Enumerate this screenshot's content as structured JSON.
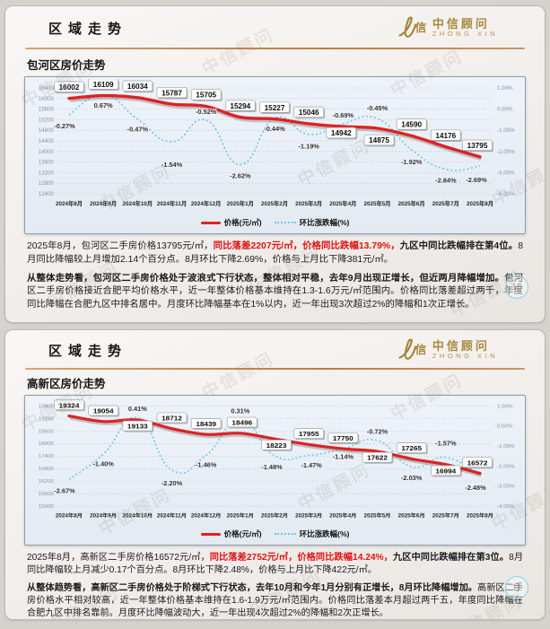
{
  "watermark_text": "中信顾问",
  "panels": [
    {
      "header": {
        "title": "区域走势",
        "logo_cn": "中信顾问",
        "logo_en": "ZHONG XIN"
      },
      "chart_title": "包河区房价走势",
      "page_number": "10",
      "chart_data": {
        "type": "line",
        "title": "包河区房价走势",
        "categories": [
          "2024年8月",
          "2024年9月",
          "2024年10月",
          "2024年11月",
          "2024年12月",
          "2025年1月",
          "2025年2月",
          "2025年3月",
          "2025年4月",
          "2025年5月",
          "2025年6月",
          "2025年7月",
          "2025年8月"
        ],
        "series": [
          {
            "name": "价格(元/㎡)",
            "axis": "left",
            "style": "solid",
            "color": "#e02121",
            "values": [
              16002,
              16109,
              16034,
              15787,
              15705,
              15294,
              15227,
              15046,
              14942,
              14875,
              14590,
              14176,
              13795
            ]
          },
          {
            "name": "环比涨跌幅(%)",
            "axis": "right",
            "style": "dotted",
            "color": "#74c7e9",
            "values": [
              -0.27,
              0.67,
              -0.47,
              -1.54,
              -0.52,
              -2.62,
              -0.44,
              -1.19,
              -0.69,
              -0.45,
              -1.92,
              -2.84,
              -2.69
            ],
            "labels": [
              "-0.27%",
              "0.67%",
              "-0.47%",
              "-1.54%",
              "-0.52%",
              "-2.62%",
              "-0.44%",
              "-1.19%",
              "-0.69%",
              "-0.45%",
              "-1.92%",
              "-2.84%",
              "-2.69%"
            ]
          }
        ],
        "left_ticks": [
          16400,
          16000,
          15600,
          15200,
          14800,
          14400,
          14000,
          13600,
          13200,
          12800,
          12400
        ],
        "right_ticks": [
          "1.00%",
          "0.00%",
          "-1.00%",
          "-2.00%",
          "-3.00%",
          "-4.00%"
        ],
        "left_axis_range": [
          12400,
          16400
        ],
        "right_axis_range": [
          -4,
          1
        ],
        "grid": true,
        "legend_position": "bottom",
        "price_label_dy": [
          -13,
          -13,
          -13,
          -13,
          -13,
          -13,
          -13,
          -13,
          7,
          13,
          -13,
          -13,
          -13
        ],
        "price_label_dx": [
          0,
          0,
          0,
          0,
          0,
          0,
          0,
          0,
          -2,
          2,
          0,
          0,
          -3
        ],
        "pct_label_dy": [
          11,
          10,
          10,
          24,
          -7,
          11,
          10,
          12,
          -7,
          -9,
          12,
          11,
          14
        ],
        "pct_label_dx": [
          -5,
          0,
          0,
          0,
          0,
          0,
          0,
          0,
          0,
          0,
          0,
          0,
          -4
        ]
      },
      "paragraphs": [
        {
          "segments": [
            {
              "style": "normal",
              "text": "2025年8月，包河区二手房价格13795元/㎡，"
            },
            {
              "style": "red",
              "text": "同比落差2207元/㎡，价格同比跌幅13.79%，"
            },
            {
              "style": "bold",
              "text": "九区中同比跌幅排在第4位。"
            },
            {
              "style": "normal",
              "text": "8月同比降幅较上月增加2.14个百分点。8月环比下降2.69%，价格与上月比下降381元/㎡。"
            }
          ]
        },
        {
          "segments": [
            {
              "style": "bold",
              "text": "从整体走势看，包河区二手房价格处于波浪式下行状态，整体相对平稳，去年9月出现正增长，但近两月降幅增加。"
            },
            {
              "style": "normal",
              "text": "包河区二手房价格接近合肥平均价格水平，近一年整体价格基本维持在1.3-1.6万元/㎡范围内。价格同比落差超过两千，年度同比降幅在合肥九区中排名居中。月度环比降幅基本在1%以内，近一年出现3次超过2%的降幅和1次正增长。"
            }
          ]
        }
      ]
    },
    {
      "header": {
        "title": "区域走势",
        "logo_cn": "中信顾问",
        "logo_en": "ZHONG XIN"
      },
      "chart_title": "高新区房价走势",
      "page_number": "11",
      "chart_data": {
        "type": "line",
        "title": "高新区房价走势",
        "categories": [
          "2024年8月",
          "2024年9月",
          "2024年10月",
          "2024年11月",
          "2024年12月",
          "2025年1月",
          "2025年2月",
          "2025年3月",
          "2025年4月",
          "2025年5月",
          "2025年6月",
          "2025年7月",
          "2025年8月"
        ],
        "series": [
          {
            "name": "价格(元/㎡)",
            "axis": "left",
            "style": "solid",
            "color": "#e02121",
            "values": [
              19324,
              19054,
              19133,
              18712,
              18439,
              18496,
              18223,
              17955,
              17750,
              17622,
              17265,
              16994,
              16572
            ]
          },
          {
            "name": "环比涨跌幅(%)",
            "axis": "right",
            "style": "dotted",
            "color": "#74c7e9",
            "values": [
              -2.67,
              -1.4,
              0.41,
              -2.2,
              -1.46,
              0.31,
              -1.48,
              -1.47,
              -1.14,
              -0.72,
              -2.03,
              -1.57,
              -2.48
            ],
            "labels": [
              "-2.67%",
              "-1.40%",
              "0.41%",
              "-2.20%",
              "-1.46%",
              "0.31%",
              "-1.48%",
              "-1.47%",
              "-1.14%",
              "-0.72%",
              "-2.03%",
              "-1.57%",
              "-2.48%"
            ]
          }
        ],
        "left_ticks": [
          19800,
          19200,
          18600,
          18000,
          17400,
          16800,
          16200,
          15600,
          15000
        ],
        "right_ticks": [
          "1.00%",
          "0.00%",
          "-1.00%",
          "-2.00%",
          "-3.00%",
          "-4.00%"
        ],
        "left_axis_range": [
          15000,
          19800
        ],
        "right_axis_range": [
          -4,
          1
        ],
        "grid": true,
        "legend_position": "bottom",
        "price_label_dy": [
          -13,
          -13,
          7,
          -13,
          -13,
          -13,
          7,
          -13,
          -13,
          7,
          -13,
          7,
          -13
        ],
        "price_label_dx": [
          0,
          0,
          0,
          0,
          0,
          2,
          2,
          0,
          0,
          0,
          0,
          0,
          -3
        ],
        "pct_label_dy": [
          12,
          10,
          -8,
          14,
          10,
          -8,
          12,
          10,
          8,
          -8,
          12,
          -14,
          13
        ],
        "pct_label_dx": [
          -5,
          0,
          0,
          0,
          0,
          0,
          -3,
          3,
          0,
          0,
          0,
          0,
          -5
        ]
      },
      "paragraphs": [
        {
          "segments": [
            {
              "style": "normal",
              "text": "2025年8月，高新区二手房价格16572元/㎡，"
            },
            {
              "style": "red",
              "text": "同比落差2752元/㎡，价格同比跌幅14.24%，"
            },
            {
              "style": "bold",
              "text": "九区中同比跌幅排在第3位。"
            },
            {
              "style": "normal",
              "text": "8月同比降幅较上月减少0.17个百分点。8月环比下降2.48%，价格与上月比下降422元/㎡。"
            }
          ]
        },
        {
          "segments": [
            {
              "style": "bold",
              "text": "从整体趋势看，高新区二手房价格处于阶梯式下行状态，去年10月和今年1月分别有正增长，8月环比降幅增加。"
            },
            {
              "style": "normal",
              "text": "高新区二手房价格水平相对较高，近一年整体价格基本维持在1.6-1.9万元/㎡范围内。价格同比落差本月超过两千五，年度同比降幅在合肥九区中排名靠前。月度环比降幅波动大，近一年出现4次超过2%的降幅和2次正增长。"
            }
          ]
        }
      ]
    }
  ]
}
